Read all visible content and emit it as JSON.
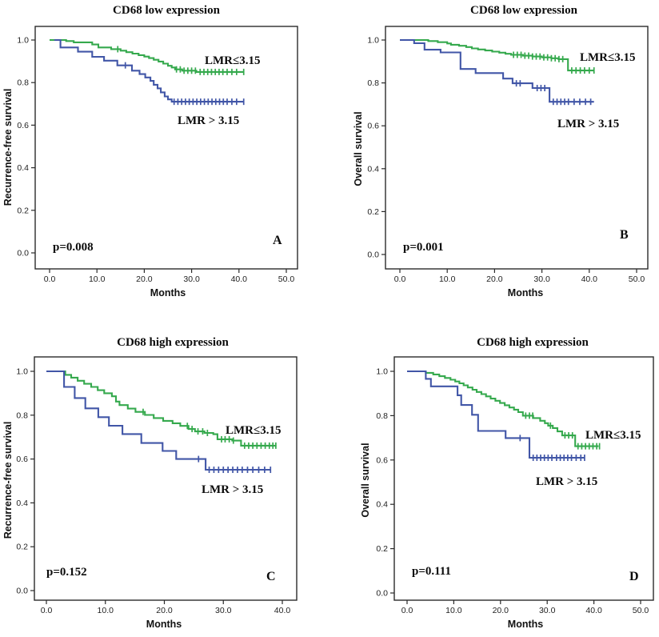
{
  "figure": {
    "background": "#ffffff",
    "colors": {
      "green": "#35A94D",
      "blue": "#4156A7",
      "axis": "#2a2a2a"
    }
  },
  "chart_data": [
    {
      "type": "line",
      "letter": "A",
      "title": "CD68 low expression",
      "xlabel": "Months",
      "ylabel": "Recurrence-free survival",
      "p_label": "p=0.008",
      "xlim": [
        0,
        50
      ],
      "ylim": [
        0,
        1.0
      ],
      "xticks": [
        "0.0",
        "10.0",
        "20.0",
        "30.0",
        "40.0",
        "50.0"
      ],
      "yticks": [
        "0.0",
        "0.2",
        "0.4",
        "0.6",
        "0.8",
        "1.0"
      ],
      "grid": false,
      "legend_position": "inline-labels",
      "series": [
        {
          "name": "LMR≤3.15",
          "color": "#35A94D",
          "steps": [
            [
              0,
              1.0
            ],
            [
              3.5,
              0.995
            ],
            [
              5.1,
              0.989
            ],
            [
              9,
              0.979
            ],
            [
              10.3,
              0.965
            ],
            [
              13,
              0.957
            ],
            [
              15,
              0.95
            ],
            [
              16.2,
              0.943
            ],
            [
              17.5,
              0.936
            ],
            [
              18.8,
              0.929
            ],
            [
              20,
              0.922
            ],
            [
              21,
              0.915
            ],
            [
              22,
              0.907
            ],
            [
              23,
              0.899
            ],
            [
              24,
              0.889
            ],
            [
              25,
              0.879
            ],
            [
              25.8,
              0.871
            ],
            [
              26.5,
              0.862
            ],
            [
              28,
              0.856
            ],
            [
              31,
              0.85
            ],
            [
              41,
              0.85
            ]
          ],
          "censors": [
            14.4,
            26.8,
            27.6,
            28.4,
            29.2,
            30,
            30.8,
            31.8,
            32.6,
            33.4,
            34.2,
            35,
            35.8,
            36.6,
            37.5,
            38.5,
            39.5,
            41
          ]
        },
        {
          "name": "LMR > 3.15",
          "color": "#4156A7",
          "steps": [
            [
              1,
              1.0
            ],
            [
              2.3,
              0.965
            ],
            [
              6,
              0.945
            ],
            [
              9,
              0.921
            ],
            [
              11.5,
              0.903
            ],
            [
              14.3,
              0.881
            ],
            [
              17.4,
              0.856
            ],
            [
              19,
              0.84
            ],
            [
              20.2,
              0.824
            ],
            [
              21.3,
              0.808
            ],
            [
              22,
              0.79
            ],
            [
              22.8,
              0.773
            ],
            [
              23.5,
              0.754
            ],
            [
              24.3,
              0.735
            ],
            [
              25,
              0.721
            ],
            [
              25.8,
              0.71
            ],
            [
              41,
              0.71
            ]
          ],
          "censors": [
            16,
            26.3,
            27.1,
            27.9,
            28.7,
            29.5,
            30.3,
            31.1,
            31.9,
            32.7,
            33.5,
            34.3,
            35.1,
            35.9,
            36.7,
            37.5,
            38.5,
            39.5,
            41
          ]
        }
      ]
    },
    {
      "type": "line",
      "letter": "B",
      "title": "CD68 low expression",
      "xlabel": "Months",
      "ylabel": "Overall survival",
      "p_label": "p=0.001",
      "xlim": [
        0,
        50
      ],
      "ylim": [
        0,
        1.0
      ],
      "xticks": [
        "0.0",
        "10.0",
        "20.0",
        "30.0",
        "40.0",
        "50.0"
      ],
      "yticks": [
        "0.0",
        "0.2",
        "0.4",
        "0.6",
        "0.8",
        "1.0"
      ],
      "grid": false,
      "legend_position": "inline-labels",
      "series": [
        {
          "name": "LMR≤3.15",
          "color": "#35A94D",
          "steps": [
            [
              0,
              1.0
            ],
            [
              6,
              0.995
            ],
            [
              8,
              0.99
            ],
            [
              10,
              0.984
            ],
            [
              10.8,
              0.978
            ],
            [
              12.5,
              0.973
            ],
            [
              14,
              0.967
            ],
            [
              15.2,
              0.961
            ],
            [
              16.5,
              0.956
            ],
            [
              18,
              0.951
            ],
            [
              19.5,
              0.946
            ],
            [
              21,
              0.941
            ],
            [
              22.3,
              0.936
            ],
            [
              23.5,
              0.931
            ],
            [
              26,
              0.927
            ],
            [
              28,
              0.923
            ],
            [
              30,
              0.919
            ],
            [
              32,
              0.915
            ],
            [
              33.5,
              0.911
            ],
            [
              35.5,
              0.858
            ],
            [
              41,
              0.858
            ]
          ],
          "censors": [
            24,
            24.8,
            25.6,
            26.4,
            27.2,
            28,
            28.8,
            29.6,
            30.4,
            31.2,
            32,
            32.8,
            33.6,
            34.4,
            36.3,
            37.2,
            38.1,
            39,
            40,
            41
          ]
        },
        {
          "name": "LMR > 3.15",
          "color": "#4156A7",
          "steps": [
            [
              0,
              1.0
            ],
            [
              3,
              0.985
            ],
            [
              5.2,
              0.955
            ],
            [
              8.6,
              0.942
            ],
            [
              12.8,
              0.865
            ],
            [
              16,
              0.846
            ],
            [
              21.8,
              0.82
            ],
            [
              23.8,
              0.798
            ],
            [
              28,
              0.776
            ],
            [
              31.6,
              0.712
            ],
            [
              41,
              0.712
            ]
          ],
          "censors": [
            24.6,
            25.4,
            29,
            29.8,
            30.6,
            32.4,
            33.2,
            34,
            34.8,
            35.6,
            36.8,
            38,
            39.2,
            40.3
          ]
        }
      ]
    },
    {
      "type": "line",
      "letter": "C",
      "title": "CD68 high expression",
      "xlabel": "Months",
      "ylabel": "Recurrence-free survival",
      "p_label": "p=0.152",
      "xlim": [
        0,
        40
      ],
      "ylim": [
        0,
        1.0
      ],
      "xticks": [
        "0.0",
        "10.0",
        "20.0",
        "30.0",
        "40.0"
      ],
      "yticks": [
        "0.0",
        "0.2",
        "0.4",
        "0.6",
        "0.8",
        "1.0"
      ],
      "grid": false,
      "legend_position": "inline-labels",
      "series": [
        {
          "name": "LMR≤3.15",
          "color": "#35A94D",
          "steps": [
            [
              0,
              1.0
            ],
            [
              3.2,
              0.984
            ],
            [
              4.2,
              0.971
            ],
            [
              5.3,
              0.957
            ],
            [
              6.4,
              0.943
            ],
            [
              7.6,
              0.929
            ],
            [
              8.7,
              0.914
            ],
            [
              9.8,
              0.9
            ],
            [
              11.1,
              0.886
            ],
            [
              11.8,
              0.862
            ],
            [
              12.4,
              0.846
            ],
            [
              13.8,
              0.83
            ],
            [
              15.1,
              0.815
            ],
            [
              16.7,
              0.801
            ],
            [
              18.2,
              0.787
            ],
            [
              19.8,
              0.774
            ],
            [
              21.4,
              0.763
            ],
            [
              22.7,
              0.751
            ],
            [
              24.1,
              0.737
            ],
            [
              25.2,
              0.726
            ],
            [
              26.8,
              0.719
            ],
            [
              28.3,
              0.713
            ],
            [
              29,
              0.69
            ],
            [
              31.5,
              0.684
            ],
            [
              33,
              0.661
            ],
            [
              39,
              0.661
            ]
          ],
          "censors": [
            16.4,
            23.9,
            24.7,
            25.7,
            26.5,
            27.3,
            29.7,
            30.3,
            31,
            31.7,
            33.6,
            34.3,
            35,
            35.7,
            36.4,
            37.1,
            37.8,
            38.4,
            38.9
          ]
        },
        {
          "name": "LMR > 3.15",
          "color": "#4156A7",
          "steps": [
            [
              0,
              1.0
            ],
            [
              3,
              0.929
            ],
            [
              4.8,
              0.878
            ],
            [
              6.6,
              0.831
            ],
            [
              8.8,
              0.791
            ],
            [
              10.6,
              0.752
            ],
            [
              12.9,
              0.714
            ],
            [
              16.1,
              0.673
            ],
            [
              19.7,
              0.637
            ],
            [
              22,
              0.6
            ],
            [
              27,
              0.551
            ],
            [
              38,
              0.551
            ]
          ],
          "censors": [
            25.8,
            27.6,
            28.4,
            29.2,
            30,
            30.8,
            31.6,
            32.4,
            33.2,
            34.1,
            35,
            36,
            37,
            38
          ]
        }
      ]
    },
    {
      "type": "line",
      "letter": "D",
      "title": "CD68 high expression",
      "xlabel": "Months",
      "ylabel": "Overall survival",
      "p_label": "p=0.111",
      "xlim": [
        0,
        50
      ],
      "ylim": [
        0,
        1.0
      ],
      "xticks": [
        "0.0",
        "10.0",
        "20.0",
        "30.0",
        "40.0",
        "50.0"
      ],
      "yticks": [
        "0.0",
        "0.2",
        "0.4",
        "0.6",
        "0.8",
        "1.0"
      ],
      "grid": false,
      "legend_position": "inline-labels",
      "series": [
        {
          "name": "LMR≤3.15",
          "color": "#35A94D",
          "steps": [
            [
              0,
              1.0
            ],
            [
              4,
              0.993
            ],
            [
              5.6,
              0.986
            ],
            [
              6.9,
              0.978
            ],
            [
              8.1,
              0.97
            ],
            [
              9.3,
              0.962
            ],
            [
              10.3,
              0.954
            ],
            [
              11.2,
              0.946
            ],
            [
              12.1,
              0.937
            ],
            [
              13,
              0.927
            ],
            [
              14,
              0.917
            ],
            [
              14.9,
              0.907
            ],
            [
              15.9,
              0.897
            ],
            [
              16.9,
              0.887
            ],
            [
              17.9,
              0.877
            ],
            [
              18.9,
              0.867
            ],
            [
              19.9,
              0.857
            ],
            [
              20.9,
              0.847
            ],
            [
              21.9,
              0.837
            ],
            [
              22.9,
              0.827
            ],
            [
              23.8,
              0.816
            ],
            [
              24.8,
              0.8
            ],
            [
              27,
              0.789
            ],
            [
              28.5,
              0.777
            ],
            [
              29.5,
              0.766
            ],
            [
              30.2,
              0.755
            ],
            [
              31.2,
              0.744
            ],
            [
              32.2,
              0.729
            ],
            [
              33.2,
              0.711
            ],
            [
              36,
              0.662
            ],
            [
              41,
              0.662
            ]
          ],
          "censors": [
            25.4,
            26.2,
            26.9,
            30.7,
            33.8,
            34.6,
            35.4,
            36.6,
            37.4,
            38.2,
            39,
            39.8,
            40.6,
            41.2
          ]
        },
        {
          "name": "LMR > 3.15",
          "color": "#4156A7",
          "steps": [
            [
              0,
              1.0
            ],
            [
              4,
              0.966
            ],
            [
              5.1,
              0.932
            ],
            [
              10.8,
              0.892
            ],
            [
              11.6,
              0.848
            ],
            [
              13.9,
              0.804
            ],
            [
              15.2,
              0.731
            ],
            [
              21.1,
              0.699
            ],
            [
              26.2,
              0.61
            ],
            [
              38,
              0.61
            ]
          ],
          "censors": [
            24.2,
            27,
            27.8,
            28.6,
            29.4,
            30.2,
            31,
            32,
            32.8,
            33.6,
            34.4,
            35.2,
            36.2,
            37.2,
            38
          ]
        }
      ]
    }
  ]
}
